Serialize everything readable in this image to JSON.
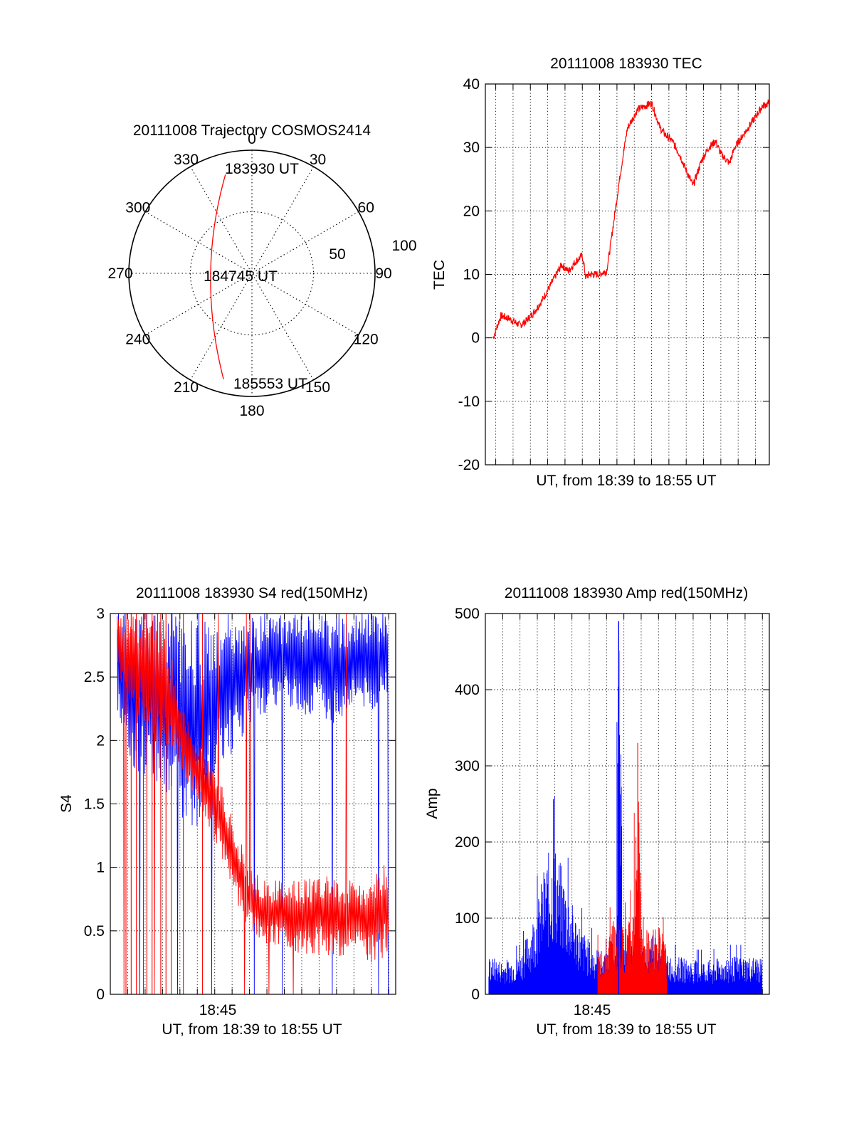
{
  "colors": {
    "red": "#ff0000",
    "blue": "#0000ff",
    "axis": "#000000"
  },
  "chart_data": [
    {
      "type": "polar",
      "title": "20111008 Trajectory COSMOS2414",
      "angle_labels": [
        "0",
        "30",
        "60",
        "90",
        "120",
        "150",
        "180",
        "210",
        "240",
        "270",
        "300",
        "330"
      ],
      "radius_labels": [
        "50",
        "100"
      ],
      "points": [
        {
          "label": "183930 UT",
          "azimuth_deg": 345,
          "radius": 83
        },
        {
          "label": "184745 UT",
          "azimuth_deg": 268,
          "radius": 38
        },
        {
          "label": "185553 UT",
          "azimuth_deg": 195,
          "radius": 89
        }
      ],
      "series": [
        {
          "color": "red"
        }
      ]
    },
    {
      "type": "line",
      "title": "20111008 183930 TEC",
      "xlabel": "UT, from 18:39 to 18:55 UT",
      "ylabel": "TEC",
      "ylim": [
        -20,
        40
      ],
      "yticks": [
        -20,
        -10,
        0,
        10,
        20,
        30,
        40
      ],
      "xlim": [
        0,
        16.4
      ],
      "xgrid": [
        0.6,
        1.6,
        2.6,
        3.6,
        4.6,
        5.6,
        6.6,
        7.6,
        8.6,
        9.6,
        10.6,
        11.6,
        12.6,
        13.6,
        14.6,
        15.6
      ],
      "grid": true,
      "series": [
        {
          "color": "red",
          "x": [
            0.45,
            0.9,
            1.4,
            2.0,
            2.3,
            2.8,
            3.3,
            3.8,
            4.4,
            4.8,
            5.2,
            5.6,
            5.8,
            6.0,
            6.5,
            7.0,
            7.2,
            7.5,
            7.8,
            8.2,
            8.8,
            9.2,
            9.6,
            10.1,
            10.4,
            10.8,
            11.2,
            11.5,
            12.0,
            12.5,
            12.9,
            13.3,
            13.6,
            14.1,
            14.4,
            14.9,
            15.4,
            16.0,
            16.4
          ],
          "y": [
            0,
            3.5,
            3,
            2,
            2.5,
            4,
            6,
            8.5,
            11.5,
            10.5,
            12,
            13,
            9.5,
            10,
            10,
            10.5,
            14,
            20,
            26,
            33,
            36,
            36.5,
            37,
            33,
            32,
            31,
            29,
            27,
            24,
            28,
            30,
            31,
            29,
            27.5,
            30,
            32,
            34,
            36.5,
            37
          ]
        }
      ]
    },
    {
      "type": "line",
      "title": "20111008 183930 S4 red(150MHz)",
      "xlabel": "UT, from 18:39 to 18:55 UT",
      "ylabel": "S4",
      "ylim": [
        0,
        3
      ],
      "yticks": [
        "0",
        "0.5",
        "1",
        "1.5",
        "2",
        "2.5",
        "3"
      ],
      "xtick_labels": [
        {
          "x": 6.0,
          "label": "18:45"
        }
      ],
      "xlim": [
        0,
        16.4
      ],
      "xgrid": [
        1.0,
        2.0,
        3.0,
        4.0,
        5.0,
        6.0,
        7.0,
        8.0,
        9.0,
        10.0,
        11.0,
        12.0,
        13.0,
        14.0,
        15.0,
        16.0
      ],
      "grid": true,
      "series": [
        {
          "color": "blue",
          "x": [
            0.4,
            1.0,
            2.0,
            3.0,
            4.0,
            5.0,
            6.0,
            7.0,
            8.0,
            9.0,
            10.0,
            11.0,
            12.0,
            13.0,
            14.0,
            15.0,
            16.0
          ],
          "low": [
            2.2,
            1.8,
            1.7,
            1.6,
            1.4,
            1.3,
            1.7,
            1.9,
            2.1,
            2.2,
            2.3,
            2.2,
            2.2,
            2.1,
            2.3,
            2.2,
            2.4
          ],
          "high": [
            3,
            3,
            3,
            3,
            3,
            3,
            3,
            3,
            3,
            3,
            3,
            3,
            3,
            3,
            3,
            3,
            3
          ]
        },
        {
          "color": "red",
          "x": [
            0.4,
            1.0,
            2.0,
            3.0,
            4.0,
            5.0,
            6.0,
            7.0,
            8.0,
            9.0,
            10.0,
            11.0,
            12.0,
            13.0,
            14.0,
            15.0,
            16.0
          ],
          "low": [
            2.5,
            2.3,
            2.1,
            1.9,
            1.8,
            1.5,
            1.2,
            0.8,
            0.5,
            0.4,
            0.35,
            0.3,
            0.3,
            0.3,
            0.3,
            0.25,
            0.3
          ],
          "high": [
            3,
            3,
            3,
            3,
            2.4,
            2.0,
            1.8,
            1.4,
            1.0,
            0.9,
            0.9,
            0.9,
            1.0,
            0.9,
            0.9,
            0.9,
            1.1
          ]
        }
      ]
    },
    {
      "type": "line",
      "title": "20111008 183930 Amp red(150MHz)",
      "xlabel": "UT, from 18:39 to 18:55 UT",
      "ylabel": "Amp",
      "ylim": [
        0,
        500
      ],
      "yticks": [
        0,
        100,
        200,
        300,
        400,
        500
      ],
      "xtick_labels": [
        {
          "x": 6.0,
          "label": "18:45"
        }
      ],
      "xlim": [
        0,
        16.4
      ],
      "xgrid": [
        1.0,
        2.0,
        3.0,
        4.0,
        5.0,
        6.0,
        7.0,
        8.0,
        9.0,
        10.0,
        11.0,
        12.0,
        13.0,
        14.0,
        15.0,
        16.0
      ],
      "grid": true,
      "series": [
        {
          "color": "blue",
          "x": [
            0.2,
            1.0,
            2.0,
            3.0,
            3.5,
            4.0,
            4.5,
            5.0,
            5.5,
            6.0,
            6.5,
            7.0,
            7.5,
            7.7,
            8.0,
            8.5,
            9.0,
            9.5,
            10.0,
            11.0,
            12.0,
            13.0,
            14.0,
            15.0,
            16.0
          ],
          "values": [
            50,
            45,
            50,
            120,
            180,
            200,
            160,
            120,
            90,
            70,
            60,
            55,
            60,
            490,
            70,
            65,
            60,
            60,
            55,
            50,
            45,
            45,
            50,
            50,
            50
          ]
        },
        {
          "color": "red",
          "x": [
            6.5,
            7.0,
            7.5,
            8.0,
            8.5,
            8.8,
            9.0,
            9.5,
            10.0,
            10.5
          ],
          "values": [
            60,
            80,
            100,
            90,
            110,
            330,
            110,
            80,
            100,
            60
          ]
        }
      ]
    }
  ]
}
